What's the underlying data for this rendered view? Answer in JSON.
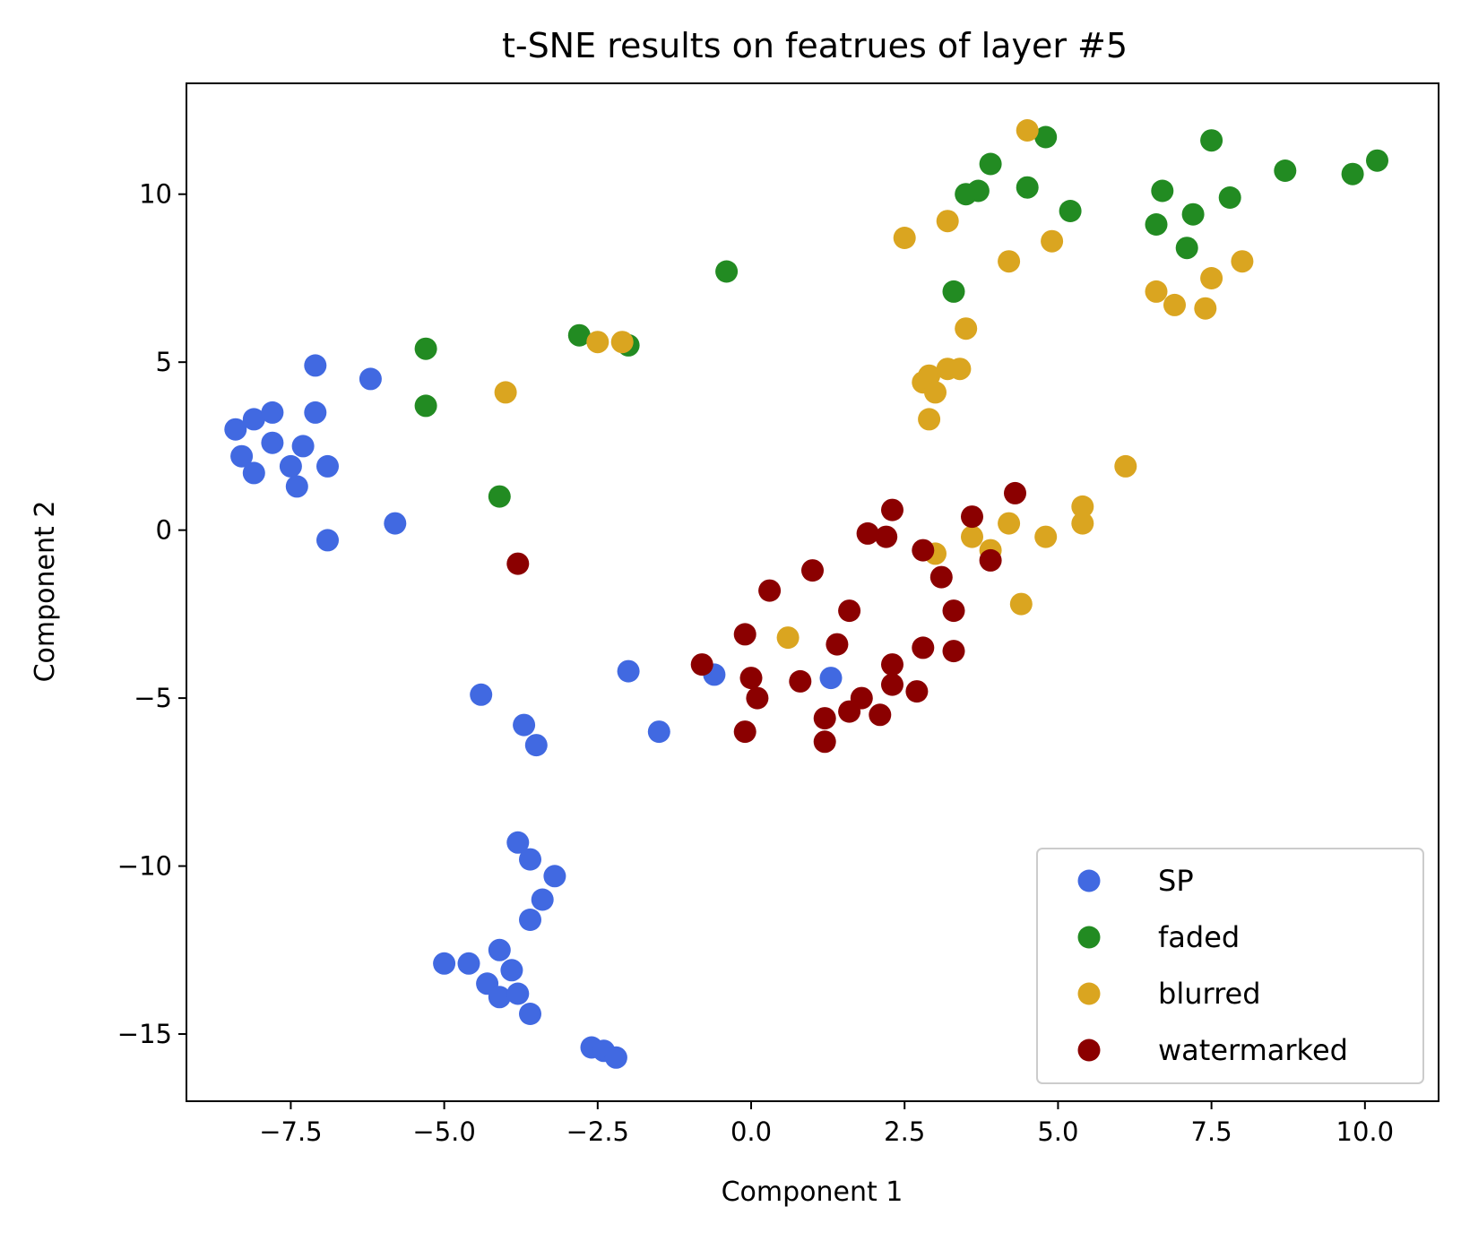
{
  "chart_data": {
    "type": "scatter",
    "title": "t-SNE results on featrues of layer #5",
    "xlabel": "Component 1",
    "ylabel": "Component 2",
    "xlim": [
      -9.2,
      11.2
    ],
    "ylim": [
      -17.0,
      13.3
    ],
    "x_ticks": [
      -7.5,
      -5.0,
      -2.5,
      0.0,
      2.5,
      5.0,
      7.5,
      10.0
    ],
    "x_tick_labels": [
      "−7.5",
      "−5.0",
      "−2.5",
      "0.0",
      "2.5",
      "5.0",
      "7.5",
      "10.0"
    ],
    "y_ticks": [
      -15,
      -10,
      -5,
      0,
      5,
      10
    ],
    "y_tick_labels": [
      "−15",
      "−10",
      "−5",
      "0",
      "5",
      "10"
    ],
    "grid": false,
    "legend_position": "lower-right",
    "series": [
      {
        "name": "SP",
        "color": "#4169e1",
        "points": [
          [
            -8.4,
            3.0
          ],
          [
            -8.1,
            3.3
          ],
          [
            -7.8,
            3.5
          ],
          [
            -7.1,
            4.9
          ],
          [
            -7.1,
            3.5
          ],
          [
            -6.2,
            4.5
          ],
          [
            -8.3,
            2.2
          ],
          [
            -7.8,
            2.6
          ],
          [
            -7.3,
            2.5
          ],
          [
            -8.1,
            1.7
          ],
          [
            -7.5,
            1.9
          ],
          [
            -7.4,
            1.3
          ],
          [
            -6.9,
            1.9
          ],
          [
            -6.9,
            -0.3
          ],
          [
            -5.8,
            0.2
          ],
          [
            -4.4,
            -4.9
          ],
          [
            -3.7,
            -5.8
          ],
          [
            -3.5,
            -6.4
          ],
          [
            -2.0,
            -4.2
          ],
          [
            -1.5,
            -6.0
          ],
          [
            -0.6,
            -4.3
          ],
          [
            1.3,
            -4.4
          ],
          [
            -3.8,
            -9.3
          ],
          [
            -3.6,
            -9.8
          ],
          [
            -3.2,
            -10.3
          ],
          [
            -3.4,
            -11.0
          ],
          [
            -3.6,
            -11.6
          ],
          [
            -4.1,
            -12.5
          ],
          [
            -3.9,
            -13.1
          ],
          [
            -4.3,
            -13.5
          ],
          [
            -5.0,
            -12.9
          ],
          [
            -4.6,
            -12.9
          ],
          [
            -4.1,
            -13.9
          ],
          [
            -3.8,
            -13.8
          ],
          [
            -3.6,
            -14.4
          ],
          [
            -2.6,
            -15.4
          ],
          [
            -2.4,
            -15.5
          ],
          [
            -2.2,
            -15.7
          ]
        ]
      },
      {
        "name": "faded",
        "color": "#228b22",
        "points": [
          [
            -5.3,
            5.4
          ],
          [
            -5.3,
            3.7
          ],
          [
            -4.1,
            1.0
          ],
          [
            -2.8,
            5.8
          ],
          [
            -2.0,
            5.5
          ],
          [
            -0.4,
            7.7
          ],
          [
            3.3,
            7.1
          ],
          [
            3.5,
            10.0
          ],
          [
            3.7,
            10.1
          ],
          [
            3.9,
            10.9
          ],
          [
            4.5,
            10.2
          ],
          [
            4.8,
            11.7
          ],
          [
            5.2,
            9.5
          ],
          [
            6.7,
            10.1
          ],
          [
            6.6,
            9.1
          ],
          [
            7.1,
            8.4
          ],
          [
            7.2,
            9.4
          ],
          [
            7.5,
            11.6
          ],
          [
            7.8,
            9.9
          ],
          [
            8.7,
            10.7
          ],
          [
            9.8,
            10.6
          ],
          [
            10.2,
            11.0
          ]
        ]
      },
      {
        "name": "blurred",
        "color": "#daa520",
        "points": [
          [
            -4.0,
            4.1
          ],
          [
            -2.5,
            5.6
          ],
          [
            -2.1,
            5.6
          ],
          [
            2.5,
            8.7
          ],
          [
            3.2,
            9.2
          ],
          [
            4.2,
            8.0
          ],
          [
            4.9,
            8.6
          ],
          [
            4.5,
            11.9
          ],
          [
            3.5,
            6.0
          ],
          [
            2.8,
            4.4
          ],
          [
            2.9,
            4.6
          ],
          [
            3.0,
            4.1
          ],
          [
            3.2,
            4.8
          ],
          [
            3.4,
            4.8
          ],
          [
            2.9,
            3.3
          ],
          [
            6.6,
            7.1
          ],
          [
            6.9,
            6.7
          ],
          [
            7.4,
            6.6
          ],
          [
            7.5,
            7.5
          ],
          [
            8.0,
            8.0
          ],
          [
            6.1,
            1.9
          ],
          [
            5.4,
            0.7
          ],
          [
            5.4,
            0.2
          ],
          [
            4.8,
            -0.2
          ],
          [
            4.2,
            0.2
          ],
          [
            3.6,
            -0.2
          ],
          [
            3.9,
            -0.6
          ],
          [
            3.0,
            -0.7
          ],
          [
            4.4,
            -2.2
          ],
          [
            0.6,
            -3.2
          ]
        ]
      },
      {
        "name": "watermarked",
        "color": "#8b0000",
        "points": [
          [
            -3.8,
            -1.0
          ],
          [
            -0.8,
            -4.0
          ],
          [
            -0.1,
            -3.1
          ],
          [
            0.0,
            -4.4
          ],
          [
            0.1,
            -5.0
          ],
          [
            -0.1,
            -6.0
          ],
          [
            0.3,
            -1.8
          ],
          [
            0.8,
            -4.5
          ],
          [
            1.0,
            -1.2
          ],
          [
            1.2,
            -5.6
          ],
          [
            1.2,
            -6.3
          ],
          [
            1.4,
            -3.4
          ],
          [
            1.6,
            -2.4
          ],
          [
            1.6,
            -5.4
          ],
          [
            1.8,
            -5.0
          ],
          [
            2.1,
            -5.5
          ],
          [
            2.2,
            -0.2
          ],
          [
            1.9,
            -0.1
          ],
          [
            2.3,
            0.6
          ],
          [
            2.3,
            -4.0
          ],
          [
            2.3,
            -4.6
          ],
          [
            2.7,
            -4.8
          ],
          [
            2.8,
            -0.6
          ],
          [
            2.8,
            -3.5
          ],
          [
            3.1,
            -1.4
          ],
          [
            3.3,
            -2.4
          ],
          [
            3.3,
            -3.6
          ],
          [
            3.6,
            0.4
          ],
          [
            3.9,
            -0.9
          ],
          [
            4.3,
            1.1
          ]
        ]
      }
    ]
  }
}
